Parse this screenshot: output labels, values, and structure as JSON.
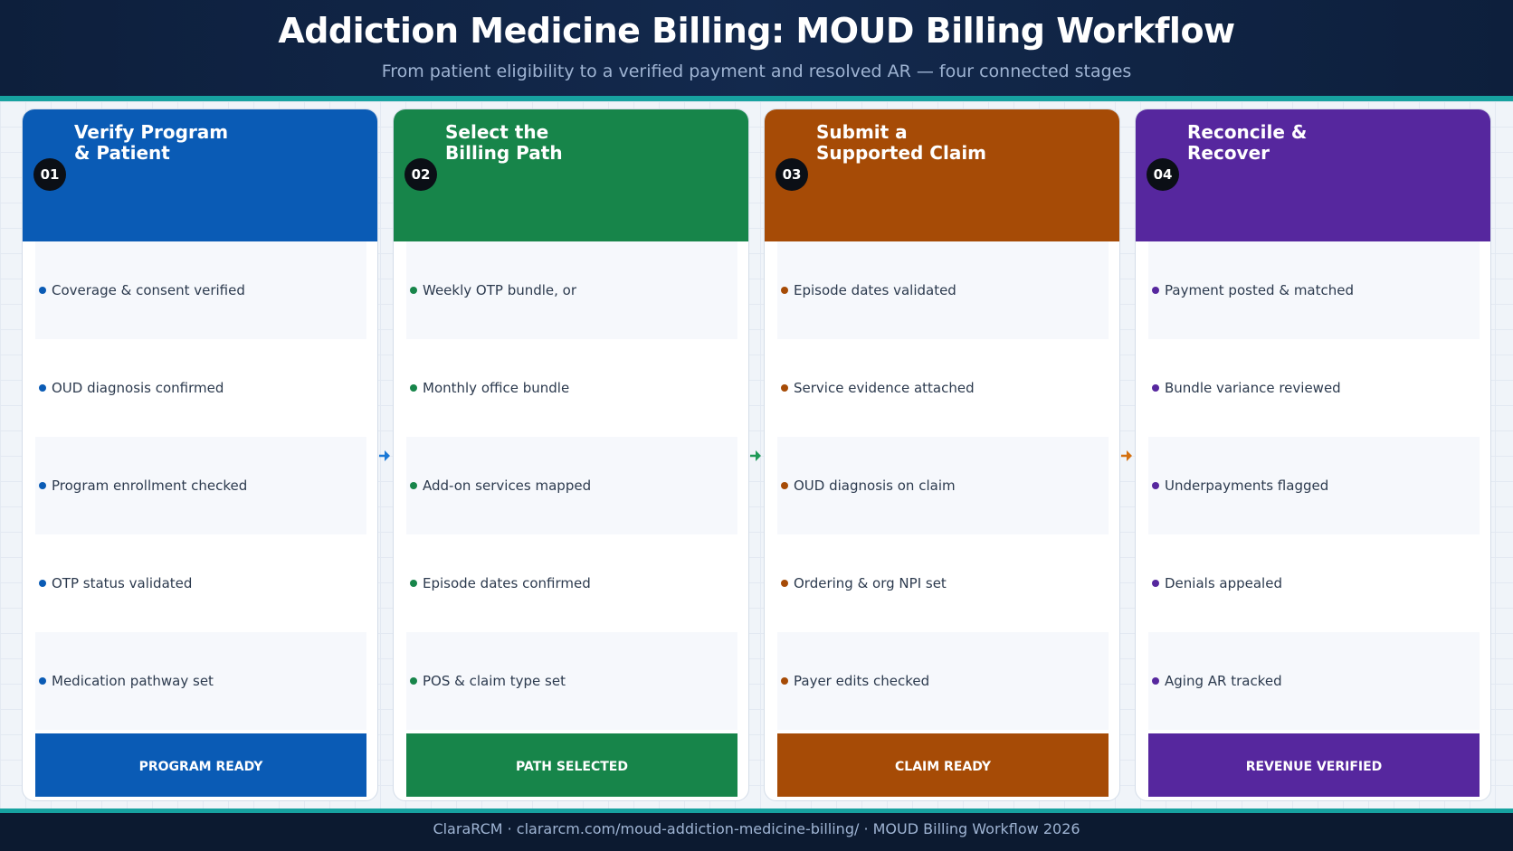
{
  "header": {
    "title": "Addiction Medicine Billing: MOUD Billing Workflow",
    "subtitle": "From patient eligibility to a verified payment and resolved AR — four connected stages"
  },
  "stages": [
    {
      "number": "01",
      "title": "Verify Program\n& Patient",
      "color": "#0a5bb5",
      "items": [
        "Coverage & consent verified",
        "OUD diagnosis confirmed",
        "Program enrollment checked",
        "OTP status validated",
        "Medication pathway set"
      ],
      "status": "PROGRAM READY"
    },
    {
      "number": "02",
      "title": "Select the\nBilling Path",
      "color": "#17854a",
      "items": [
        "Weekly OTP bundle, or",
        "Monthly office bundle",
        "Add-on services mapped",
        "Episode dates confirmed",
        "POS & claim type set"
      ],
      "status": "PATH SELECTED"
    },
    {
      "number": "03",
      "title": "Submit a\nSupported Claim",
      "color": "#a64b06",
      "items": [
        "Episode dates validated",
        "Service evidence attached",
        "OUD diagnosis on claim",
        "Ordering & org NPI set",
        "Payer edits checked"
      ],
      "status": "CLAIM READY"
    },
    {
      "number": "04",
      "title": "Reconcile &\nRecover",
      "color": "#56279e",
      "items": [
        "Payment posted & matched",
        "Bundle variance reviewed",
        "Underpayments flagged",
        "Denials appealed",
        "Aging AR tracked"
      ],
      "status": "REVENUE VERIFIED"
    }
  ],
  "arrow_colors": [
    "#1a78d6",
    "#1f9a57",
    "#d4700f"
  ],
  "footer": {
    "text": "ClaraRCM · clararcm.com/moud-addiction-medicine-billing/ · MOUD Billing Workflow 2026"
  }
}
